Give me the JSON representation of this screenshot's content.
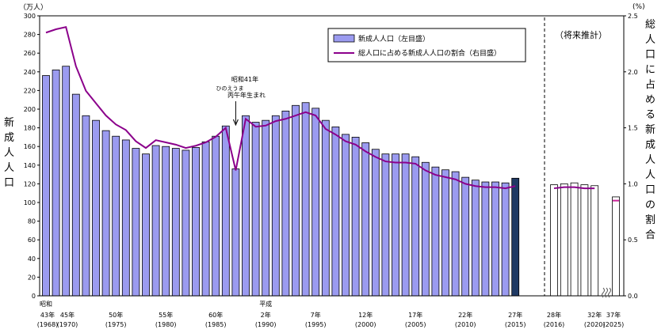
{
  "chart_data": {
    "type": "bar+line",
    "left_axis": {
      "title": "新成人人口",
      "unit": "（万人）",
      "range": [
        0,
        300
      ],
      "ticks": [
        "0",
        "20",
        "40",
        "60",
        "80",
        "100",
        "120",
        "140",
        "160",
        "180",
        "200",
        "220",
        "240",
        "260",
        "280",
        "300"
      ]
    },
    "right_axis": {
      "title": "総人口に占める新成人人口の割合",
      "unit": "(%)",
      "range": [
        0,
        2.5
      ],
      "ticks": [
        "0.0",
        "0.5",
        "1.0",
        "1.5",
        "2.0",
        "2.5"
      ]
    },
    "legend": {
      "position": "top-right",
      "bar_label": "新成人人口（左目盛）",
      "line_label": "総人口に占める新成人人口の割合（右目盛）"
    },
    "projection_label": "（将来推計）",
    "annotation": {
      "line1": "昭和41年",
      "line2": "ひのえうま",
      "line3": "丙午年生まれ"
    },
    "era_labels": {
      "showa": "昭和",
      "heisei": "平成"
    },
    "x_labels": [
      {
        "i": 0,
        "top": "43年",
        "bottom": "(1968)"
      },
      {
        "i": 2,
        "top": "45年",
        "bottom": "(1970)"
      },
      {
        "i": 7,
        "top": "50年",
        "bottom": "(1975)"
      },
      {
        "i": 12,
        "top": "55年",
        "bottom": "(1980)"
      },
      {
        "i": 17,
        "top": "60年",
        "bottom": "(1985)"
      },
      {
        "i": 22,
        "top": "2年",
        "bottom": "(1990)"
      },
      {
        "i": 27,
        "top": "7年",
        "bottom": "(1995)"
      },
      {
        "i": 32,
        "top": "12年",
        "bottom": "(2000)"
      },
      {
        "i": 37,
        "top": "17年",
        "bottom": "(2005)"
      },
      {
        "i": 42,
        "top": "22年",
        "bottom": "(2010)"
      },
      {
        "i": 47,
        "top": "27年",
        "bottom": "(2015)"
      },
      {
        "i": 48,
        "top": "28年",
        "bottom": "(2016)"
      },
      {
        "i": 52,
        "top": "32年",
        "bottom": "(2020)"
      },
      {
        "i": 53,
        "top": "37年",
        "bottom": "(2025)"
      }
    ],
    "bars": [
      {
        "v": 236,
        "t": "a"
      },
      {
        "v": 242,
        "t": "a"
      },
      {
        "v": 246,
        "t": "a"
      },
      {
        "v": 216,
        "t": "a"
      },
      {
        "v": 193,
        "t": "a"
      },
      {
        "v": 188,
        "t": "a"
      },
      {
        "v": 177,
        "t": "a"
      },
      {
        "v": 171,
        "t": "a"
      },
      {
        "v": 167,
        "t": "a"
      },
      {
        "v": 158,
        "t": "a"
      },
      {
        "v": 152,
        "t": "a"
      },
      {
        "v": 161,
        "t": "a"
      },
      {
        "v": 160,
        "t": "a"
      },
      {
        "v": 158,
        "t": "a"
      },
      {
        "v": 156,
        "t": "a"
      },
      {
        "v": 159,
        "t": "a"
      },
      {
        "v": 165,
        "t": "a"
      },
      {
        "v": 171,
        "t": "a"
      },
      {
        "v": 182,
        "t": "a"
      },
      {
        "v": 136,
        "t": "a"
      },
      {
        "v": 193,
        "t": "a"
      },
      {
        "v": 186,
        "t": "a"
      },
      {
        "v": 188,
        "t": "a"
      },
      {
        "v": 193,
        "t": "a"
      },
      {
        "v": 198,
        "t": "a"
      },
      {
        "v": 204,
        "t": "a"
      },
      {
        "v": 207,
        "t": "a"
      },
      {
        "v": 201,
        "t": "a"
      },
      {
        "v": 188,
        "t": "a"
      },
      {
        "v": 181,
        "t": "a"
      },
      {
        "v": 173,
        "t": "a"
      },
      {
        "v": 170,
        "t": "a"
      },
      {
        "v": 164,
        "t": "a"
      },
      {
        "v": 157,
        "t": "a"
      },
      {
        "v": 152,
        "t": "a"
      },
      {
        "v": 152,
        "t": "a"
      },
      {
        "v": 152,
        "t": "a"
      },
      {
        "v": 149,
        "t": "a"
      },
      {
        "v": 143,
        "t": "a"
      },
      {
        "v": 138,
        "t": "a"
      },
      {
        "v": 135,
        "t": "a"
      },
      {
        "v": 133,
        "t": "a"
      },
      {
        "v": 127,
        "t": "a"
      },
      {
        "v": 124,
        "t": "a"
      },
      {
        "v": 122,
        "t": "a"
      },
      {
        "v": 122,
        "t": "a"
      },
      {
        "v": 121,
        "t": "a"
      },
      {
        "v": 126,
        "t": "c"
      },
      {
        "v": 119,
        "t": "p"
      },
      {
        "v": 120,
        "t": "p"
      },
      {
        "v": 121,
        "t": "p"
      },
      {
        "v": 119,
        "t": "p"
      },
      {
        "v": 118,
        "t": "p"
      },
      {
        "v": 106,
        "t": "p"
      }
    ],
    "ratio": [
      2.35,
      2.38,
      2.4,
      2.05,
      1.83,
      1.72,
      1.61,
      1.53,
      1.48,
      1.38,
      1.32,
      1.39,
      1.37,
      1.35,
      1.32,
      1.34,
      1.37,
      1.42,
      1.5,
      1.12,
      1.58,
      1.51,
      1.52,
      1.56,
      1.58,
      1.61,
      1.64,
      1.61,
      1.49,
      1.44,
      1.38,
      1.35,
      1.29,
      1.24,
      1.2,
      1.19,
      1.19,
      1.18,
      1.12,
      1.08,
      1.06,
      1.04,
      1.0,
      0.98,
      0.97,
      0.97,
      0.96,
      0.98,
      0.96,
      0.97,
      0.97,
      0.96,
      0.96,
      0.85
    ],
    "colors": {
      "bar_fill": "#9B9BF0",
      "bar_current": "#1F3A64",
      "bar_projection": "#FFFFFF",
      "line": "#8B008B",
      "marker": "#CC2299"
    }
  }
}
